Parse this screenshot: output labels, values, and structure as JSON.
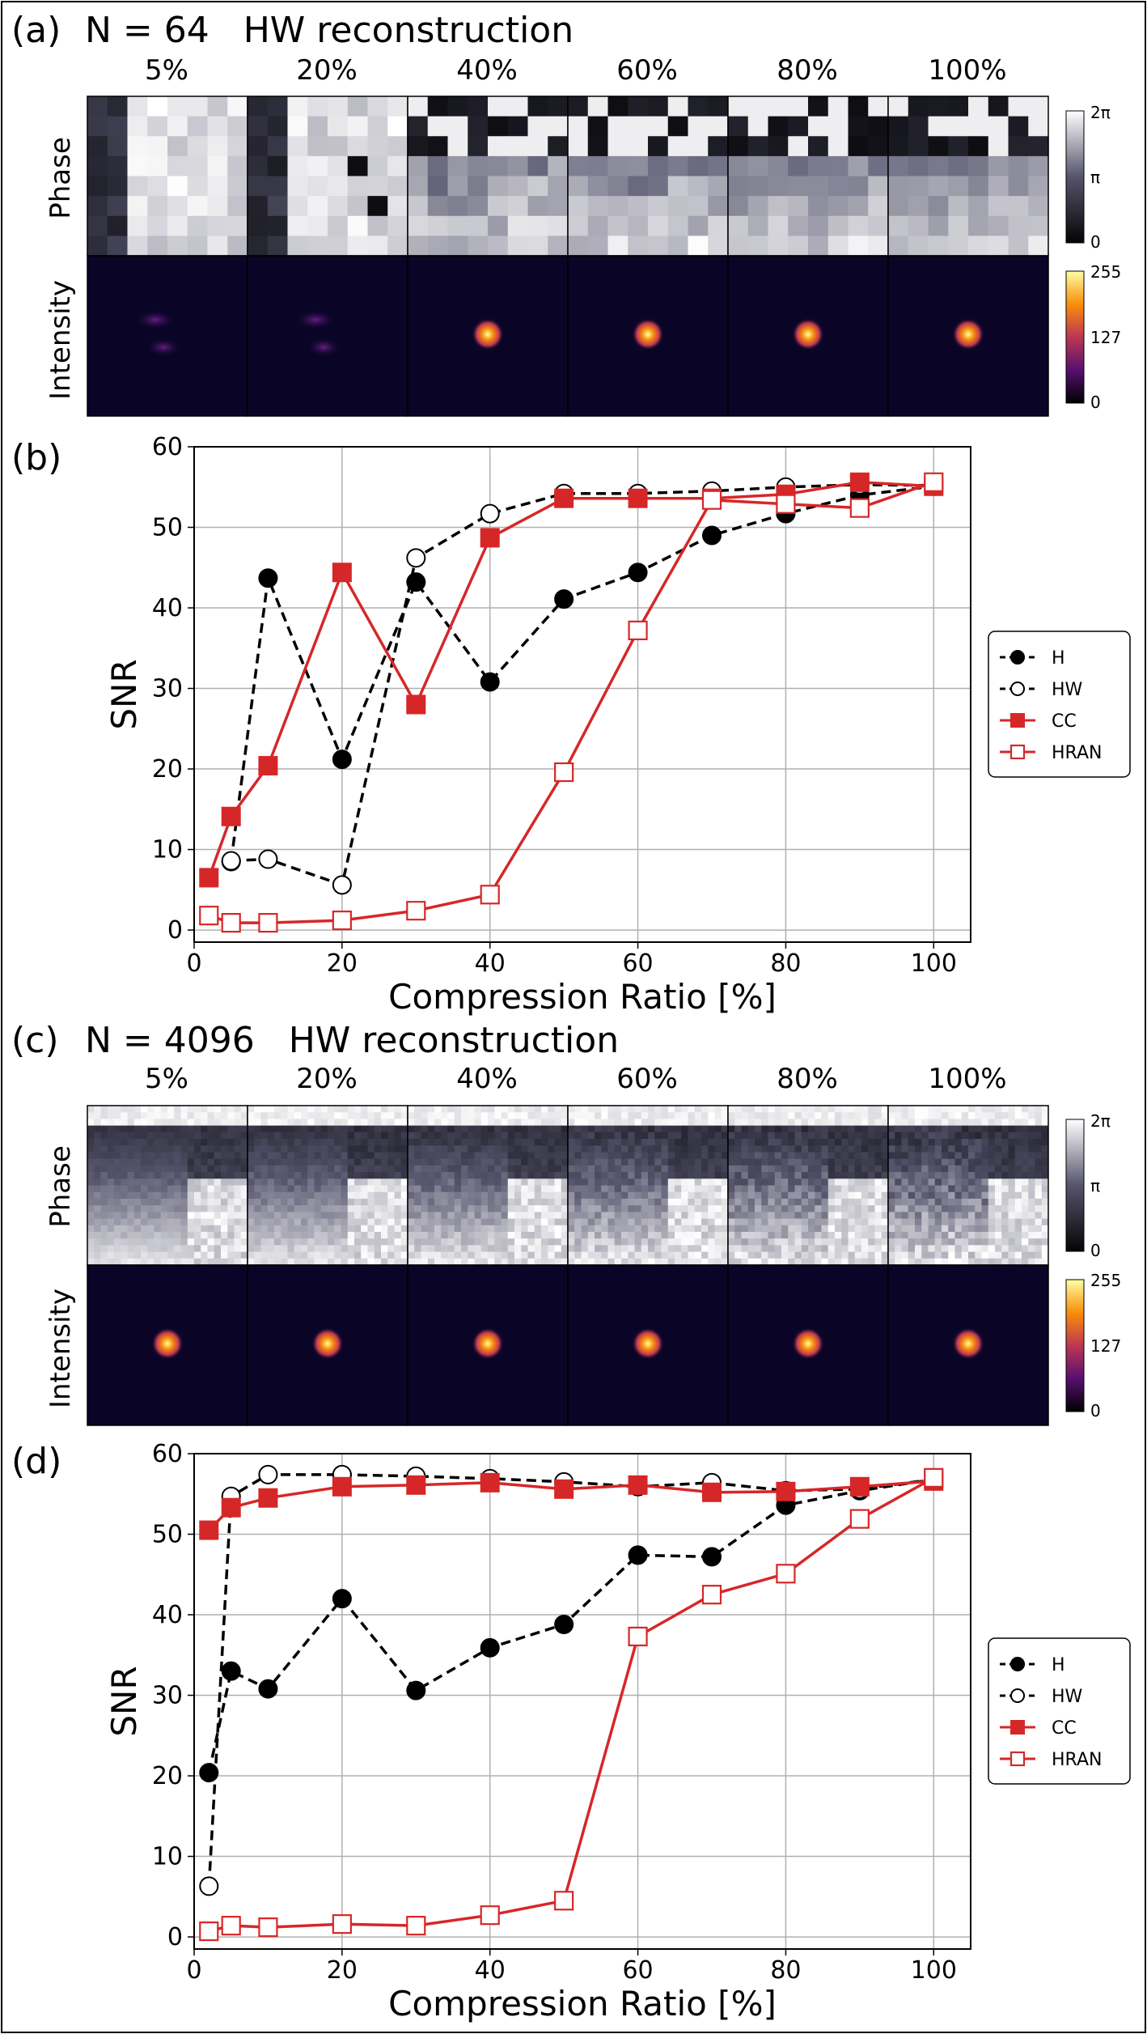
{
  "figure": {
    "panel_a": {
      "label": "(a)",
      "title": "N = 64   HW reconstruction",
      "columns": [
        "5%",
        "20%",
        "40%",
        "60%",
        "80%",
        "100%"
      ],
      "row_labels": [
        "Phase",
        "Intensity"
      ],
      "phase_colorbar": {
        "top": "2π",
        "mid": "π",
        "bottom": "0"
      },
      "intensity_colorbar": {
        "top": "255",
        "mid": "127",
        "bottom": "0"
      }
    },
    "panel_c": {
      "label": "(c)",
      "title": "N = 4096   HW reconstruction",
      "columns": [
        "5%",
        "20%",
        "40%",
        "60%",
        "80%",
        "100%"
      ],
      "row_labels": [
        "Phase",
        "Intensity"
      ],
      "phase_colorbar": {
        "top": "2π",
        "mid": "π",
        "bottom": "0"
      },
      "intensity_colorbar": {
        "top": "255",
        "mid": "127",
        "bottom": "0"
      }
    },
    "panel_b": {
      "label": "(b)"
    },
    "panel_d": {
      "label": "(d)"
    }
  },
  "colors": {
    "red": "#d62728",
    "black": "#000000"
  },
  "chart_data": [
    {
      "type": "line",
      "panel": "(b)",
      "xlabel": "Compression Ratio [%]",
      "ylabel": "SNR",
      "xlim": [
        0,
        105
      ],
      "ylim": [
        -1.5,
        60
      ],
      "xticks": [
        0,
        20,
        40,
        60,
        80,
        100
      ],
      "yticks": [
        0,
        10,
        20,
        30,
        40,
        50,
        60
      ],
      "grid": true,
      "legend_position": "right",
      "series": [
        {
          "name": "H",
          "style": "dashed",
          "marker": "filled-circle",
          "color": "#000000",
          "x": [
            5,
            10,
            20,
            30,
            40,
            50,
            60,
            70,
            80,
            90,
            100
          ],
          "y": [
            8.5,
            43.7,
            21.2,
            43.2,
            30.8,
            41.1,
            44.4,
            49.0,
            51.7,
            54.0,
            55.1
          ]
        },
        {
          "name": "HW",
          "style": "dashed",
          "marker": "open-circle",
          "color": "#000000",
          "x": [
            5,
            10,
            20,
            30,
            40,
            50,
            60,
            70,
            80,
            90,
            100
          ],
          "y": [
            8.6,
            8.8,
            5.6,
            46.2,
            51.7,
            54.2,
            54.2,
            54.5,
            55.0,
            55.3,
            55.2
          ]
        },
        {
          "name": "CC",
          "style": "solid",
          "marker": "filled-square",
          "color": "#d62728",
          "x": [
            2,
            5,
            10,
            20,
            30,
            40,
            50,
            60,
            70,
            80,
            90,
            100
          ],
          "y": [
            6.5,
            14.1,
            20.4,
            44.4,
            28.0,
            48.7,
            53.6,
            53.6,
            53.6,
            54.1,
            55.6,
            55.1
          ]
        },
        {
          "name": "HRAN",
          "style": "solid",
          "marker": "open-square",
          "color": "#d62728",
          "x": [
            2,
            5,
            10,
            20,
            30,
            40,
            50,
            60,
            70,
            80,
            90,
            100
          ],
          "y": [
            1.8,
            0.9,
            0.9,
            1.2,
            2.4,
            4.4,
            19.6,
            37.2,
            53.4,
            52.9,
            52.4,
            55.6
          ]
        }
      ]
    },
    {
      "type": "line",
      "panel": "(d)",
      "xlabel": "Compression Ratio [%]",
      "ylabel": "SNR",
      "xlim": [
        0,
        105
      ],
      "ylim": [
        -1.5,
        60
      ],
      "xticks": [
        0,
        20,
        40,
        60,
        80,
        100
      ],
      "yticks": [
        0,
        10,
        20,
        30,
        40,
        50,
        60
      ],
      "grid": true,
      "legend_position": "right",
      "series": [
        {
          "name": "H",
          "style": "dashed",
          "marker": "filled-circle",
          "color": "#000000",
          "x": [
            2,
            5,
            10,
            20,
            30,
            40,
            50,
            60,
            70,
            80,
            90,
            100
          ],
          "y": [
            20.4,
            33.0,
            30.8,
            42.0,
            30.6,
            35.9,
            38.8,
            47.4,
            47.2,
            53.6,
            55.4,
            56.8
          ]
        },
        {
          "name": "HW",
          "style": "dashed",
          "marker": "open-circle",
          "color": "#000000",
          "x": [
            2,
            5,
            10,
            20,
            30,
            40,
            50,
            60,
            70,
            80,
            90,
            100
          ],
          "y": [
            6.3,
            54.7,
            57.4,
            57.4,
            57.2,
            56.9,
            56.5,
            55.9,
            56.4,
            55.4,
            55.6,
            56.8
          ]
        },
        {
          "name": "CC",
          "style": "solid",
          "marker": "filled-square",
          "color": "#d62728",
          "x": [
            2,
            5,
            10,
            20,
            30,
            40,
            50,
            60,
            70,
            80,
            90,
            100
          ],
          "y": [
            50.5,
            53.3,
            54.5,
            55.9,
            56.1,
            56.4,
            55.6,
            56.1,
            55.2,
            55.3,
            55.9,
            56.6
          ]
        },
        {
          "name": "HRAN",
          "style": "solid",
          "marker": "open-square",
          "color": "#d62728",
          "x": [
            2,
            5,
            10,
            20,
            30,
            40,
            50,
            60,
            70,
            80,
            90,
            100
          ],
          "y": [
            0.7,
            1.4,
            1.2,
            1.6,
            1.4,
            2.7,
            4.5,
            37.3,
            42.5,
            45.1,
            51.9,
            57.0
          ]
        }
      ]
    }
  ]
}
